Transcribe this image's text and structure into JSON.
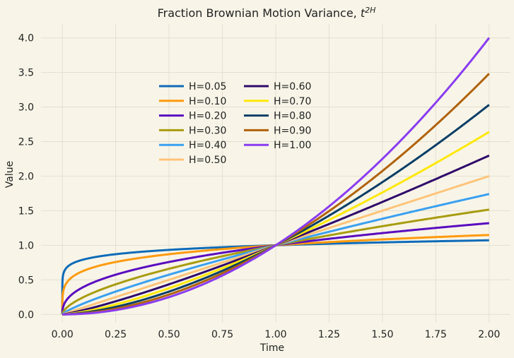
{
  "chart_data": {
    "type": "line",
    "title": "Fraction Brownian Motion Variance, ",
    "title_math": "t",
    "title_sup": "2H",
    "xlabel": "Time",
    "ylabel": "Value",
    "xlim": [
      -0.1,
      2.1
    ],
    "ylim": [
      -0.12,
      4.2
    ],
    "xticks": [
      0.0,
      0.25,
      0.5,
      0.75,
      1.0,
      1.25,
      1.5,
      1.75,
      2.0
    ],
    "xtick_labels": [
      "0.00",
      "0.25",
      "0.50",
      "0.75",
      "1.00",
      "1.25",
      "1.50",
      "1.75",
      "2.00"
    ],
    "yticks": [
      0.0,
      0.5,
      1.0,
      1.5,
      2.0,
      2.5,
      3.0,
      3.5,
      4.0
    ],
    "ytick_labels": [
      "0.0",
      "0.5",
      "1.0",
      "1.5",
      "2.0",
      "2.5",
      "3.0",
      "3.5",
      "4.0"
    ],
    "grid": true,
    "legend_position": "upper-center",
    "legend_columns": 2,
    "function": "t^(2H), t from 0 to 2",
    "x_range": [
      0,
      2
    ],
    "series": [
      {
        "name": "H=0.05",
        "H": 0.05,
        "color": "#0e6bb8"
      },
      {
        "name": "H=0.10",
        "H": 0.1,
        "color": "#ff9a0e"
      },
      {
        "name": "H=0.20",
        "H": 0.2,
        "color": "#5a0cc0"
      },
      {
        "name": "H=0.30",
        "H": 0.3,
        "color": "#a89c10"
      },
      {
        "name": "H=0.40",
        "H": 0.4,
        "color": "#3aa0f0"
      },
      {
        "name": "H=0.50",
        "H": 0.5,
        "color": "#ffc47a"
      },
      {
        "name": "H=0.60",
        "H": 0.6,
        "color": "#300a6a"
      },
      {
        "name": "H=0.70",
        "H": 0.7,
        "color": "#ffe80a"
      },
      {
        "name": "H=0.80",
        "H": 0.8,
        "color": "#083e66"
      },
      {
        "name": "H=0.90",
        "H": 0.9,
        "color": "#b0620a"
      },
      {
        "name": "H=1.00",
        "H": 1.0,
        "color": "#8a3cf0"
      }
    ]
  }
}
